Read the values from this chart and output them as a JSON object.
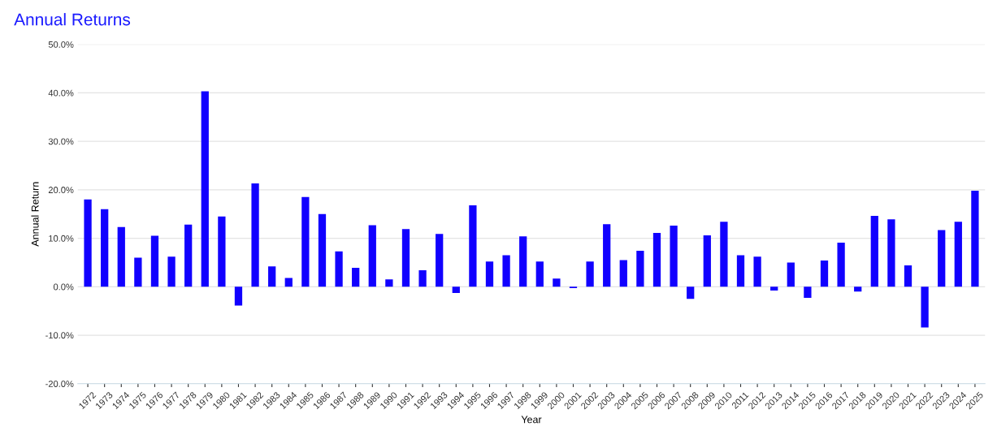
{
  "chart_data": {
    "type": "bar",
    "title": "Annual Returns",
    "xlabel": "Year",
    "ylabel": "Annual Return",
    "categories": [
      "1972",
      "1973",
      "1974",
      "1975",
      "1976",
      "1977",
      "1978",
      "1979",
      "1980",
      "1981",
      "1982",
      "1983",
      "1984",
      "1985",
      "1986",
      "1987",
      "1988",
      "1989",
      "1990",
      "1991",
      "1992",
      "1993",
      "1994",
      "1995",
      "1996",
      "1997",
      "1998",
      "1999",
      "2000",
      "2001",
      "2002",
      "2003",
      "2004",
      "2005",
      "2006",
      "2007",
      "2008",
      "2009",
      "2010",
      "2011",
      "2012",
      "2013",
      "2014",
      "2015",
      "2016",
      "2017",
      "2018",
      "2019",
      "2020",
      "2021",
      "2022",
      "2023",
      "2024",
      "2025"
    ],
    "series": [
      {
        "color": "#1100ff",
        "values": [
          18.0,
          16.0,
          12.3,
          6.0,
          10.5,
          6.2,
          12.8,
          40.3,
          14.5,
          -3.9,
          21.3,
          4.2,
          1.8,
          18.5,
          15.0,
          7.3,
          3.9,
          12.7,
          1.5,
          11.9,
          3.4,
          10.9,
          -1.3,
          16.8,
          5.2,
          6.5,
          10.4,
          5.2,
          1.7,
          -0.3,
          5.2,
          12.9,
          5.5,
          7.4,
          11.1,
          12.6,
          -2.5,
          10.6,
          13.4,
          6.5,
          6.2,
          -0.8,
          5.0,
          -2.3,
          5.4,
          9.1,
          -1.0,
          14.6,
          13.9,
          4.4,
          -8.4,
          11.7,
          13.4,
          19.8
        ]
      }
    ],
    "ylim": [
      -20,
      50
    ],
    "yticks": [
      {
        "value": -20,
        "label": "-20.0%"
      },
      {
        "value": -10,
        "label": "-10.0%"
      },
      {
        "value": 0,
        "label": "0.0%"
      },
      {
        "value": 10,
        "label": "10.0%"
      },
      {
        "value": 20,
        "label": "20.0%"
      },
      {
        "value": 30,
        "label": "30.0%"
      },
      {
        "value": 40,
        "label": "40.0%"
      },
      {
        "value": 50,
        "label": "50.0%"
      }
    ],
    "grid": "y",
    "legend": false
  }
}
